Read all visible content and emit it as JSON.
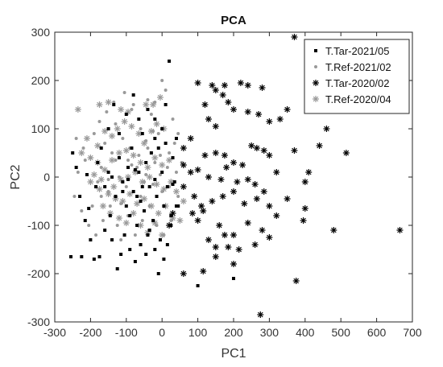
{
  "chart_data": {
    "type": "scatter",
    "title": "PCA",
    "xlabel": "PC1",
    "ylabel": "PC2",
    "xlim": [
      -300,
      700
    ],
    "ylim": [
      -300,
      300
    ],
    "xticks": [
      -300,
      -200,
      -100,
      0,
      100,
      200,
      300,
      400,
      500,
      600,
      700
    ],
    "yticks": [
      -300,
      -200,
      -100,
      0,
      100,
      200,
      300
    ],
    "grid": false,
    "legend_position": "top-right",
    "series": [
      {
        "name": "T.Tar-2021/05",
        "marker": "square",
        "color": "#000000",
        "points": [
          [
            -240,
            20
          ],
          [
            -210,
            5
          ],
          [
            -180,
            30
          ],
          [
            -160,
            -20
          ],
          [
            -150,
            10
          ],
          [
            -130,
            -40
          ],
          [
            -120,
            40
          ],
          [
            -110,
            -10
          ],
          [
            -100,
            -60
          ],
          [
            -95,
            20
          ],
          [
            -90,
            -80
          ],
          [
            -85,
            60
          ],
          [
            -80,
            -30
          ],
          [
            -70,
            -100
          ],
          [
            -65,
            10
          ],
          [
            -60,
            -50
          ],
          [
            -55,
            90
          ],
          [
            -50,
            -70
          ],
          [
            -45,
            30
          ],
          [
            -40,
            -120
          ],
          [
            -35,
            -20
          ],
          [
            -30,
            50
          ],
          [
            -25,
            -90
          ],
          [
            -20,
            120
          ],
          [
            -15,
            -40
          ],
          [
            -10,
            60
          ],
          [
            -5,
            -130
          ],
          [
            0,
            10
          ],
          [
            5,
            -60
          ],
          [
            10,
            150
          ],
          [
            15,
            -20
          ],
          [
            20,
            240
          ],
          [
            25,
            -100
          ],
          [
            30,
            40
          ],
          [
            35,
            -10
          ],
          [
            40,
            80
          ],
          [
            -250,
            50
          ],
          [
            -230,
            -40
          ],
          [
            -215,
            -90
          ],
          [
            -200,
            -130
          ],
          [
            -190,
            -170
          ],
          [
            -175,
            -165
          ],
          [
            -160,
            -110
          ],
          [
            -145,
            -80
          ],
          [
            -140,
            -130
          ],
          [
            -125,
            -190
          ],
          [
            -115,
            -160
          ],
          [
            -105,
            -120
          ],
          [
            -90,
            -150
          ],
          [
            -75,
            -175
          ],
          [
            -60,
            -140
          ],
          [
            -45,
            -160
          ],
          [
            -35,
            -110
          ],
          [
            -20,
            -150
          ],
          [
            -10,
            -200
          ],
          [
            5,
            -170
          ],
          [
            15,
            -140
          ],
          [
            25,
            -80
          ],
          [
            45,
            -60
          ],
          [
            -255,
            -165
          ],
          [
            -225,
            -165
          ],
          [
            -205,
            -65
          ],
          [
            -185,
            -20
          ],
          [
            -170,
            60
          ],
          [
            -150,
            100
          ],
          [
            -135,
            150
          ],
          [
            -120,
            90
          ],
          [
            -100,
            130
          ],
          [
            -80,
            170
          ],
          [
            -65,
            120
          ],
          [
            -40,
            140
          ],
          [
            -20,
            80
          ],
          [
            0,
            100
          ],
          [
            10,
            70
          ],
          [
            -140,
            0
          ],
          [
            -110,
            -30
          ],
          [
            -70,
            -40
          ],
          [
            -55,
            -20
          ],
          [
            100,
            -225
          ],
          [
            200,
            -210
          ],
          [
            40,
            -60
          ],
          [
            30,
            -15
          ],
          [
            -20,
            -5
          ],
          [
            -75,
            15
          ],
          [
            -95,
            -5
          ]
        ]
      },
      {
        "name": "T.Ref-2021/02",
        "marker": "dot",
        "color": "#999999",
        "points": [
          [
            -240,
            80
          ],
          [
            -220,
            60
          ],
          [
            -200,
            40
          ],
          [
            -190,
            90
          ],
          [
            -180,
            -10
          ],
          [
            -170,
            20
          ],
          [
            -160,
            70
          ],
          [
            -150,
            -30
          ],
          [
            -140,
            50
          ],
          [
            -130,
            110
          ],
          [
            -120,
            0
          ],
          [
            -110,
            80
          ],
          [
            -100,
            -20
          ],
          [
            -90,
            60
          ],
          [
            -80,
            150
          ],
          [
            -70,
            20
          ],
          [
            -60,
            100
          ],
          [
            -50,
            -10
          ],
          [
            -40,
            60
          ],
          [
            -30,
            130
          ],
          [
            -20,
            30
          ],
          [
            -10,
            90
          ],
          [
            0,
            -30
          ],
          [
            10,
            180
          ],
          [
            20,
            50
          ],
          [
            30,
            120
          ],
          [
            40,
            10
          ],
          [
            -245,
            -40
          ],
          [
            -225,
            -70
          ],
          [
            -205,
            -100
          ],
          [
            -195,
            -60
          ],
          [
            -185,
            -120
          ],
          [
            -165,
            -90
          ],
          [
            -145,
            -60
          ],
          [
            -125,
            -100
          ],
          [
            -115,
            -130
          ],
          [
            -95,
            -80
          ],
          [
            -75,
            -120
          ],
          [
            -55,
            -90
          ],
          [
            -35,
            -60
          ],
          [
            -15,
            -100
          ],
          [
            5,
            -120
          ],
          [
            25,
            -90
          ],
          [
            45,
            -40
          ],
          [
            55,
            30
          ],
          [
            -85,
            25
          ],
          [
            -65,
            45
          ],
          [
            -45,
            5
          ],
          [
            -25,
            -15
          ],
          [
            -5,
            45
          ],
          [
            15,
            20
          ],
          [
            35,
            70
          ],
          [
            -175,
            115
          ],
          [
            -155,
            135
          ],
          [
            -135,
            155
          ],
          [
            -105,
            175
          ],
          [
            -85,
            140
          ],
          [
            -40,
            160
          ],
          [
            -20,
            155
          ],
          [
            -170,
            -40
          ],
          [
            -150,
            -5
          ],
          [
            -130,
            35
          ],
          [
            -115,
            -55
          ],
          [
            -95,
            35
          ],
          [
            -60,
            -40
          ],
          [
            -45,
            75
          ],
          [
            -25,
            95
          ],
          [
            -5,
            5
          ],
          [
            20,
            -20
          ],
          [
            45,
            90
          ],
          [
            -235,
            10
          ],
          [
            -215,
            35
          ],
          [
            0,
            200
          ]
        ]
      },
      {
        "name": "T.Tar-2020/02",
        "marker": "asterisk",
        "color": "#000000",
        "points": [
          [
            370,
            290
          ],
          [
            100,
            195
          ],
          [
            140,
            190
          ],
          [
            175,
            190
          ],
          [
            220,
            195
          ],
          [
            240,
            190
          ],
          [
            280,
            185
          ],
          [
            150,
            180
          ],
          [
            170,
            170
          ],
          [
            185,
            155
          ],
          [
            120,
            150
          ],
          [
            200,
            140
          ],
          [
            240,
            135
          ],
          [
            270,
            130
          ],
          [
            300,
            115
          ],
          [
            330,
            120
          ],
          [
            350,
            140
          ],
          [
            460,
            100
          ],
          [
            130,
            120
          ],
          [
            150,
            105
          ],
          [
            80,
            80
          ],
          [
            60,
            60
          ],
          [
            120,
            45
          ],
          [
            150,
            50
          ],
          [
            175,
            45
          ],
          [
            200,
            30
          ],
          [
            225,
            25
          ],
          [
            250,
            65
          ],
          [
            265,
            60
          ],
          [
            285,
            55
          ],
          [
            300,
            45
          ],
          [
            370,
            55
          ],
          [
            515,
            50
          ],
          [
            440,
            65
          ],
          [
            100,
            15
          ],
          [
            60,
            25
          ],
          [
            80,
            10
          ],
          [
            130,
            0
          ],
          [
            165,
            -5
          ],
          [
            180,
            20
          ],
          [
            210,
            -10
          ],
          [
            240,
            -5
          ],
          [
            260,
            -15
          ],
          [
            285,
            -30
          ],
          [
            320,
            10
          ],
          [
            410,
            10
          ],
          [
            400,
            -10
          ],
          [
            60,
            -20
          ],
          [
            90,
            -40
          ],
          [
            110,
            -60
          ],
          [
            115,
            -70
          ],
          [
            140,
            -50
          ],
          [
            170,
            -40
          ],
          [
            200,
            -30
          ],
          [
            230,
            -55
          ],
          [
            265,
            -45
          ],
          [
            300,
            -60
          ],
          [
            350,
            -45
          ],
          [
            395,
            -90
          ],
          [
            400,
            -65
          ],
          [
            480,
            -110
          ],
          [
            665,
            -110
          ],
          [
            100,
            -90
          ],
          [
            160,
            -100
          ],
          [
            175,
            -120
          ],
          [
            200,
            -120
          ],
          [
            240,
            -95
          ],
          [
            280,
            -110
          ],
          [
            320,
            -80
          ],
          [
            130,
            -130
          ],
          [
            150,
            -145
          ],
          [
            185,
            -145
          ],
          [
            215,
            -150
          ],
          [
            260,
            -140
          ],
          [
            300,
            -125
          ],
          [
            115,
            -195
          ],
          [
            150,
            -165
          ],
          [
            200,
            -180
          ],
          [
            60,
            -200
          ],
          [
            375,
            -215
          ],
          [
            275,
            -285
          ],
          [
            85,
            -75
          ],
          [
            20,
            -100
          ],
          [
            30,
            -75
          ]
        ]
      },
      {
        "name": "T.Ref-2020/04",
        "marker": "asterisk",
        "color": "#999999",
        "points": [
          [
            -235,
            140
          ],
          [
            -175,
            150
          ],
          [
            -150,
            155
          ],
          [
            -115,
            140
          ],
          [
            -95,
            135
          ],
          [
            -45,
            150
          ],
          [
            -25,
            150
          ],
          [
            -5,
            165
          ],
          [
            -210,
            80
          ],
          [
            -180,
            65
          ],
          [
            -160,
            95
          ],
          [
            -140,
            85
          ],
          [
            -125,
            100
          ],
          [
            -105,
            115
          ],
          [
            -85,
            105
          ],
          [
            -65,
            90
          ],
          [
            -50,
            70
          ],
          [
            -30,
            95
          ],
          [
            -15,
            110
          ],
          [
            5,
            100
          ],
          [
            -225,
            50
          ],
          [
            -200,
            40
          ],
          [
            -180,
            30
          ],
          [
            -160,
            15
          ],
          [
            -140,
            35
          ],
          [
            -120,
            50
          ],
          [
            -100,
            55
          ],
          [
            -80,
            45
          ],
          [
            -60,
            30
          ],
          [
            -40,
            20
          ],
          [
            -20,
            40
          ],
          [
            0,
            25
          ],
          [
            20,
            35
          ],
          [
            -200,
            -10
          ],
          [
            -175,
            -25
          ],
          [
            -150,
            -35
          ],
          [
            -130,
            -45
          ],
          [
            -110,
            -50
          ],
          [
            -90,
            -35
          ],
          [
            -70,
            -55
          ],
          [
            -50,
            -45
          ],
          [
            -30,
            -60
          ],
          [
            -10,
            -75
          ],
          [
            10,
            -60
          ],
          [
            30,
            -85
          ],
          [
            50,
            -90
          ],
          [
            -165,
            -60
          ],
          [
            -145,
            -75
          ],
          [
            -120,
            -85
          ],
          [
            -100,
            -95
          ],
          [
            -80,
            -75
          ],
          [
            -60,
            -100
          ],
          [
            -40,
            -115
          ],
          [
            -20,
            -95
          ],
          [
            0,
            -120
          ],
          [
            -135,
            -20
          ],
          [
            -115,
            -5
          ],
          [
            -95,
            0
          ],
          [
            -75,
            10
          ],
          [
            -55,
            -10
          ],
          [
            -35,
            0
          ],
          [
            -15,
            -15
          ],
          [
            5,
            -25
          ],
          [
            25,
            -10
          ],
          [
            -190,
            5
          ],
          [
            -170,
            -5
          ],
          [
            60,
            -50
          ],
          [
            40,
            -30
          ]
        ]
      }
    ]
  }
}
